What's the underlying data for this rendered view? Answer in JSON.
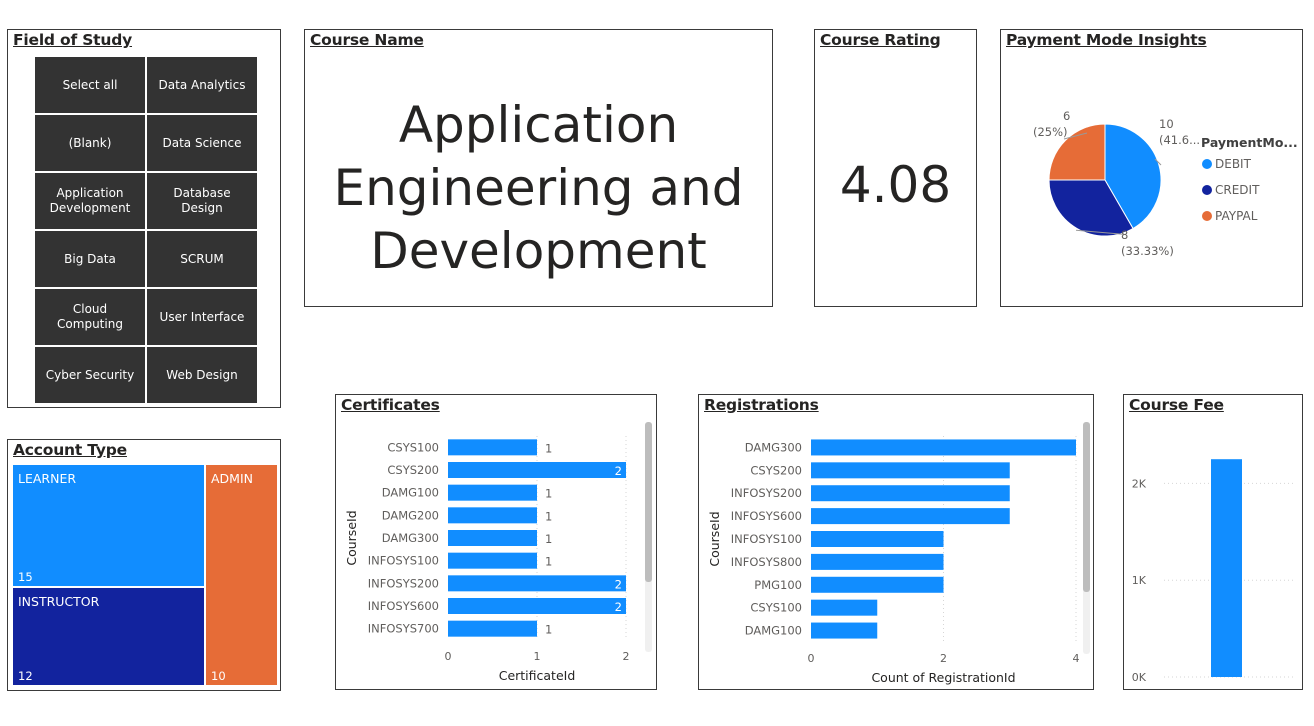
{
  "field_of_study": {
    "title": "Field of Study",
    "items": [
      "Select all",
      "Data Analytics",
      "(Blank)",
      "Data Science",
      "Application Development",
      "Database Design",
      "Big Data",
      "SCRUM",
      "Cloud Computing",
      "User Interface",
      "Cyber Security",
      "Web Design"
    ]
  },
  "course_name": {
    "title": "Course Name",
    "lines": [
      "Application",
      "Engineering and",
      "Development"
    ]
  },
  "course_rating": {
    "title": "Course Rating",
    "value": "4.08"
  },
  "payment": {
    "title": "Payment Mode Insights",
    "legend_title": "PaymentMo...",
    "chart_data": {
      "type": "pie",
      "slices": [
        {
          "name": "DEBIT",
          "value": 10,
          "label_value": "10",
          "label_pct": "(41.6...",
          "color": "#118DFF"
        },
        {
          "name": "CREDIT",
          "value": 8,
          "label_value": "8",
          "label_pct": "(33.33%)",
          "color": "#12239E"
        },
        {
          "name": "PAYPAL",
          "value": 6,
          "label_value": "6",
          "label_pct": "(25%)",
          "color": "#E66C37"
        }
      ]
    }
  },
  "account_type": {
    "title": "Account Type",
    "chart_data": {
      "type": "treemap",
      "items": [
        {
          "name": "LEARNER",
          "value": 15,
          "label": "15",
          "color": "#118DFF"
        },
        {
          "name": "INSTRUCTOR",
          "value": 12,
          "label": "12",
          "color": "#12239E"
        },
        {
          "name": "ADMIN",
          "value": 10,
          "label": "10",
          "color": "#E66C37"
        }
      ]
    }
  },
  "certificates": {
    "title": "Certificates",
    "chart_data": {
      "type": "bar",
      "orientation": "horizontal",
      "categories": [
        "CSYS100",
        "CSYS200",
        "DAMG100",
        "DAMG200",
        "DAMG300",
        "INFOSYS100",
        "INFOSYS200",
        "INFOSYS600",
        "INFOSYS700"
      ],
      "values": [
        1,
        2,
        1,
        1,
        1,
        1,
        2,
        2,
        1
      ],
      "xlabel": "CertificateId",
      "ylabel": "CourseId",
      "xlim": [
        0,
        2
      ],
      "ticks": [
        "0",
        "1",
        "2"
      ],
      "color": "#118DFF"
    }
  },
  "registrations": {
    "title": "Registrations",
    "chart_data": {
      "type": "bar",
      "orientation": "horizontal",
      "categories": [
        "DAMG300",
        "CSYS200",
        "INFOSYS200",
        "INFOSYS600",
        "INFOSYS100",
        "INFOSYS800",
        "PMG100",
        "CSYS100",
        "DAMG100"
      ],
      "values": [
        4,
        3,
        3,
        3,
        2,
        2,
        2,
        1,
        1
      ],
      "xlabel": "Count of RegistrationId",
      "ylabel": "CourseId",
      "xlim": [
        0,
        4
      ],
      "ticks": [
        "0",
        "2",
        "4"
      ],
      "color": "#118DFF"
    }
  },
  "course_fee": {
    "title": "Course Fee",
    "chart_data": {
      "type": "bar",
      "values": [
        2250
      ],
      "ylim": [
        0,
        2500
      ],
      "tick_values": [
        0,
        1000,
        2000
      ],
      "ticks": [
        "0K",
        "1K",
        "2K"
      ],
      "color": "#118DFF"
    }
  }
}
